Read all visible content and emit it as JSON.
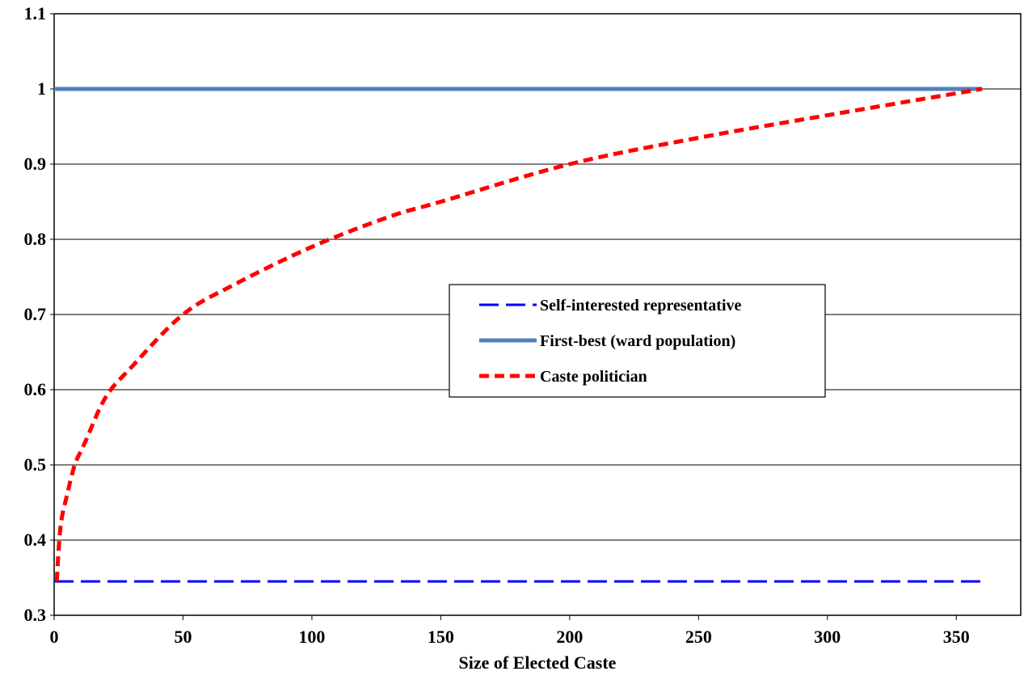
{
  "chart_data": {
    "type": "line",
    "title": "",
    "xlabel": "Size of Elected Caste",
    "ylabel": "",
    "xlim": [
      0,
      375
    ],
    "ylim": [
      0.3,
      1.1
    ],
    "xticks": [
      0,
      50,
      100,
      150,
      200,
      250,
      300,
      350
    ],
    "yticks": [
      0.3,
      0.4,
      0.5,
      0.6,
      0.7,
      0.8,
      0.9,
      1,
      1.1
    ],
    "ytick_labels": [
      "0.3",
      "0.4",
      "0.5",
      "0.6",
      "0.7",
      "0.8",
      "0.9",
      "1",
      "1.1"
    ],
    "xtick_labels": [
      "0",
      "50",
      "100",
      "150",
      "200",
      "250",
      "300",
      "350"
    ],
    "grid": "horizontal",
    "legend_position": "center-right",
    "series": [
      {
        "name": "Self-interested representative",
        "color": "#0000ff",
        "style": "long-dash",
        "x": [
          0,
          360
        ],
        "y": [
          0.345,
          0.345
        ]
      },
      {
        "name": "First-best (ward population)",
        "color": "#4f81bd",
        "style": "solid",
        "x": [
          0,
          360
        ],
        "y": [
          1.0,
          1.0
        ]
      },
      {
        "name": "Caste politician",
        "color": "#ff0000",
        "style": "short-dash",
        "x": [
          1,
          2,
          3,
          5,
          8,
          12,
          20,
          30,
          50,
          70,
          100,
          130,
          150,
          200,
          250,
          300,
          360
        ],
        "y": [
          0.345,
          0.4,
          0.43,
          0.46,
          0.5,
          0.53,
          0.59,
          0.63,
          0.7,
          0.74,
          0.79,
          0.83,
          0.85,
          0.9,
          0.935,
          0.965,
          1.0
        ]
      }
    ]
  }
}
